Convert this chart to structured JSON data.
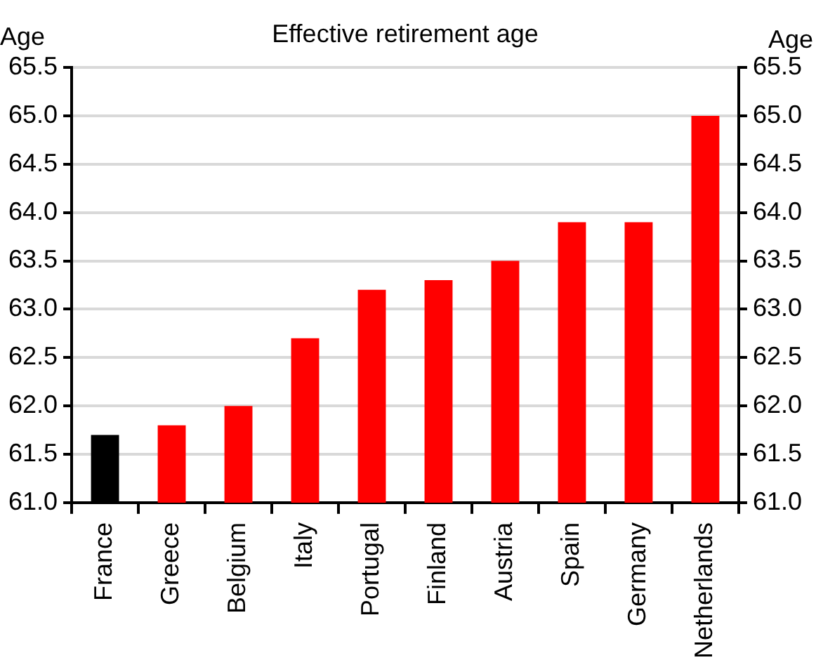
{
  "chart_data": {
    "type": "bar",
    "title": "Effective retirement age",
    "ylabel": "Age",
    "y2label": "Age",
    "categories": [
      "France",
      "Greece",
      "Belgium",
      "Italy",
      "Portugal",
      "Finland",
      "Austria",
      "Spain",
      "Germany",
      "Netherlands"
    ],
    "values": [
      61.7,
      61.8,
      62.0,
      62.7,
      63.2,
      63.3,
      63.5,
      63.9,
      63.9,
      65.0
    ],
    "colors": [
      "#000000",
      "#ff0000",
      "#ff0000",
      "#ff0000",
      "#ff0000",
      "#ff0000",
      "#ff0000",
      "#ff0000",
      "#ff0000",
      "#ff0000"
    ],
    "ylim": [
      61.0,
      65.5
    ],
    "yticks": [
      {
        "value": 61,
        "label": "61.0"
      },
      {
        "value": 61.5,
        "label": "61.5"
      },
      {
        "value": 62,
        "label": "62.0"
      },
      {
        "value": 62.5,
        "label": "62.5"
      },
      {
        "value": 63,
        "label": "63.0"
      },
      {
        "value": 63.5,
        "label": "63.5"
      },
      {
        "value": 64,
        "label": "64.0"
      },
      {
        "value": 64.5,
        "label": "64.5"
      },
      {
        "value": 65,
        "label": "65.0"
      },
      {
        "value": 65.5,
        "label": "65.5"
      }
    ],
    "y2lim": [
      61.0,
      65.5
    ],
    "y2ticks": [
      {
        "value": 61,
        "label": "61.0"
      },
      {
        "value": 61.5,
        "label": "61.5"
      },
      {
        "value": 62,
        "label": "62.0"
      },
      {
        "value": 62.5,
        "label": "62.5"
      },
      {
        "value": 63,
        "label": "63.0"
      },
      {
        "value": 63.5,
        "label": "63.5"
      },
      {
        "value": 64,
        "label": "64.0"
      },
      {
        "value": 64.5,
        "label": "64.5"
      },
      {
        "value": 65,
        "label": "65.0"
      },
      {
        "value": 65.5,
        "label": "65.5"
      }
    ],
    "grid": "y",
    "legend": false
  }
}
